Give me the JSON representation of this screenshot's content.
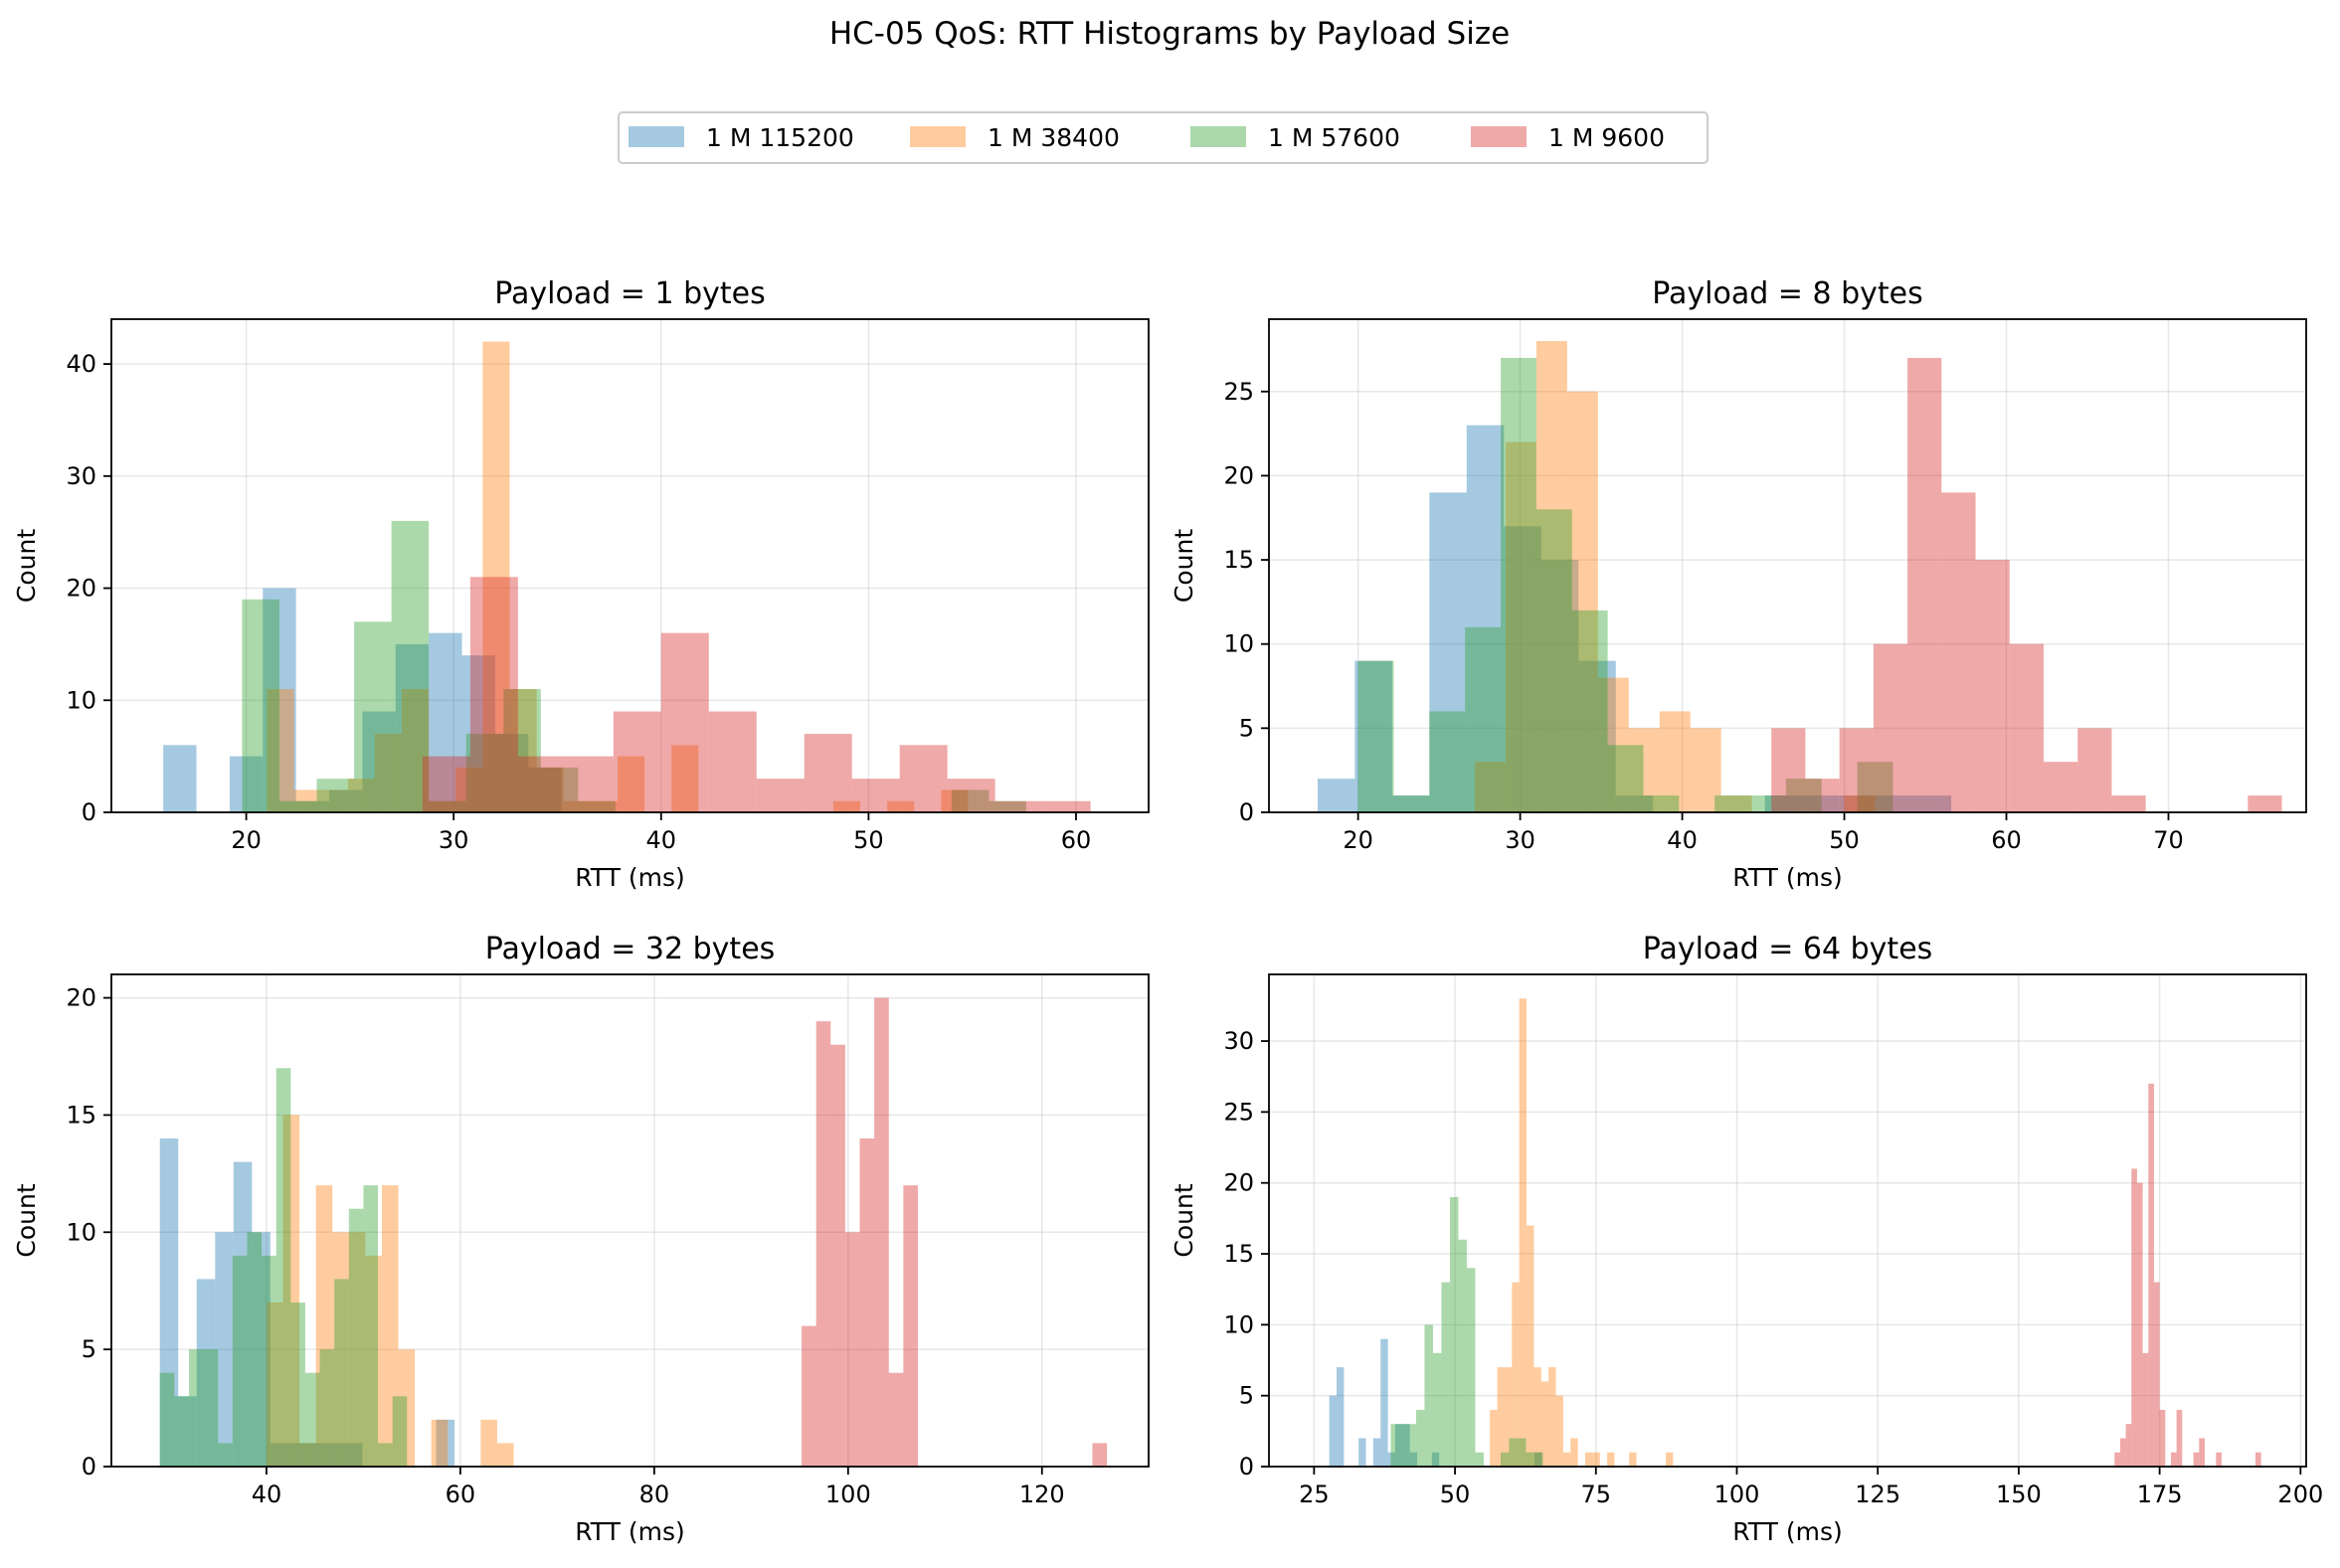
{
  "figure": {
    "title": "HC-05 QoS: RTT Histograms by Payload Size",
    "legend": {
      "placement": "top-center",
      "entries": [
        {
          "name": "1 M 115200",
          "color": "#1f77b4"
        },
        {
          "name": "1 M 38400",
          "color": "#ff7f0e"
        },
        {
          "name": "1 M 57600",
          "color": "#2ca02c"
        },
        {
          "name": "1 M 9600",
          "color": "#d62728"
        }
      ]
    },
    "bar_opacity": 0.4,
    "grid": true
  },
  "chart_data": [
    {
      "type": "histogram",
      "title": "Payload = 1 bytes",
      "xlabel": "RTT (ms)",
      "ylabel": "Count",
      "xlim": [
        13.5,
        63.5
      ],
      "ylim": [
        0,
        44
      ],
      "xticks": [
        20,
        30,
        40,
        50,
        60
      ],
      "yticks": [
        0,
        10,
        20,
        30,
        40
      ],
      "series": [
        {
          "name": "1 M 115200",
          "color": "#1f77b4",
          "edges": [
            16,
            17.6,
            19.2,
            20.8,
            22.4,
            24,
            25.6,
            27.2,
            28.8,
            30.4,
            32,
            33.6,
            35.2
          ],
          "counts": [
            6,
            0,
            5,
            20,
            1,
            2,
            9,
            15,
            16,
            14,
            7,
            4
          ]
        },
        {
          "name": "1 M 38400",
          "color": "#ff7f0e",
          "edges": [
            21,
            22.3,
            23.6,
            24.9,
            26.2,
            27.5,
            28.8,
            30.1,
            31.4,
            32.7,
            34,
            35.3,
            36.6,
            37.9,
            39.2,
            40.5,
            41.8,
            43.1,
            44.4,
            45.7,
            47,
            48.3,
            49.6,
            50.9,
            52.2,
            53.5,
            54.8
          ],
          "counts": [
            11,
            2,
            2,
            3,
            7,
            11,
            1,
            4,
            42,
            11,
            4,
            1,
            1,
            5,
            0,
            6,
            0,
            0,
            0,
            0,
            0,
            1,
            0,
            1,
            0,
            2
          ]
        },
        {
          "name": "1 M 57600",
          "color": "#2ca02c",
          "edges": [
            19.8,
            21.6,
            23.4,
            25.2,
            27,
            28.8,
            30.6,
            32.4,
            34.2,
            36,
            37.8,
            39.6,
            41.4,
            43.2,
            45,
            46.8,
            48.6,
            50.4,
            52.2,
            54,
            55.8,
            57.6
          ],
          "counts": [
            19,
            1,
            3,
            17,
            26,
            1,
            7,
            11,
            4,
            1,
            0,
            0,
            0,
            0,
            0,
            0,
            0,
            0,
            0,
            2,
            1
          ]
        },
        {
          "name": "1 M 9600",
          "color": "#d62728",
          "edges": [
            28.5,
            30.8,
            33.1,
            35.4,
            37.7,
            40,
            42.3,
            44.6,
            46.9,
            49.2,
            51.5,
            53.8,
            56.1,
            58.4,
            60.7
          ],
          "counts": [
            5,
            21,
            5,
            5,
            9,
            16,
            9,
            3,
            7,
            3,
            6,
            3,
            1,
            1
          ]
        }
      ]
    },
    {
      "type": "histogram",
      "title": "Payload = 8 bytes",
      "xlabel": "RTT (ms)",
      "ylabel": "Count",
      "xlim": [
        14.5,
        78.5
      ],
      "ylim": [
        0,
        29.3
      ],
      "xticks": [
        20,
        30,
        40,
        50,
        60,
        70
      ],
      "yticks": [
        0,
        5,
        10,
        15,
        20,
        25
      ],
      "series": [
        {
          "name": "1 M 115200",
          "color": "#1f77b4",
          "edges": [
            17.5,
            19.8,
            22.1,
            24.4,
            26.7,
            29,
            31.3,
            33.6,
            35.9,
            38.2,
            40.5,
            42.8,
            45.1,
            47.4,
            49.7,
            52,
            54.3,
            56.6
          ],
          "counts": [
            2,
            9,
            1,
            19,
            23,
            17,
            15,
            9,
            1,
            0,
            0,
            0,
            1,
            1,
            1,
            1,
            1
          ]
        },
        {
          "name": "1 M 38400",
          "color": "#ff7f0e",
          "edges": [
            27.2,
            29.1,
            31,
            32.9,
            34.8,
            36.7,
            38.6,
            40.5,
            42.4,
            44.3,
            46.2,
            48.1,
            50,
            51.9
          ],
          "counts": [
            3,
            22,
            28,
            25,
            8,
            5,
            6,
            5,
            1,
            0,
            0,
            0,
            1
          ]
        },
        {
          "name": "1 M 57600",
          "color": "#2ca02c",
          "edges": [
            20,
            22.2,
            24.4,
            26.6,
            28.8,
            31,
            33.2,
            35.4,
            37.6,
            39.8,
            42,
            44.2,
            46.4,
            48.6,
            50.8,
            53
          ],
          "counts": [
            9,
            1,
            6,
            11,
            27,
            18,
            12,
            4,
            1,
            0,
            1,
            1,
            2,
            0,
            3
          ]
        },
        {
          "name": "1 M 9600",
          "color": "#d62728",
          "edges": [
            45.5,
            47.6,
            49.7,
            51.8,
            53.9,
            56,
            58.1,
            60.2,
            62.3,
            64.4,
            66.5,
            68.6,
            70.7,
            72.8,
            74.9,
            77
          ],
          "counts": [
            5,
            2,
            5,
            10,
            27,
            19,
            15,
            10,
            3,
            5,
            1,
            0,
            0,
            0,
            1
          ]
        }
      ]
    },
    {
      "type": "histogram",
      "title": "Payload = 32 bytes",
      "xlabel": "RTT (ms)",
      "ylabel": "Count",
      "xlim": [
        24,
        131
      ],
      "ylim": [
        0,
        21
      ],
      "xticks": [
        40,
        60,
        80,
        100,
        120
      ],
      "yticks": [
        0,
        5,
        10,
        15,
        20
      ],
      "series": [
        {
          "name": "1 M 115200",
          "color": "#1f77b4",
          "edges": [
            29,
            30.9,
            32.8,
            34.7,
            36.6,
            38.5,
            40.4,
            42.3,
            44.2,
            46.1,
            48,
            49.9,
            51.8,
            53.7,
            55.6,
            57.5,
            59.4
          ],
          "counts": [
            14,
            3,
            8,
            10,
            13,
            10,
            1,
            1,
            1,
            1,
            1,
            0,
            0,
            0,
            0,
            2
          ]
        },
        {
          "name": "1 M 38400",
          "color": "#ff7f0e",
          "edges": [
            40,
            41.7,
            43.4,
            45.1,
            46.8,
            48.5,
            50.2,
            51.9,
            53.6,
            55.3,
            57,
            58.7,
            60.4,
            62.1,
            63.8,
            65.5
          ],
          "counts": [
            7,
            15,
            1,
            12,
            10,
            10,
            9,
            12,
            5,
            0,
            2,
            0,
            0,
            2,
            1
          ]
        },
        {
          "name": "1 M 57600",
          "color": "#2ca02c",
          "edges": [
            29,
            30.5,
            32,
            33.5,
            35,
            36.5,
            38,
            39.5,
            41,
            42.5,
            44,
            45.5,
            47,
            48.5,
            50,
            51.5,
            53,
            54.5,
            56
          ],
          "counts": [
            4,
            3,
            5,
            5,
            1,
            9,
            10,
            9,
            17,
            7,
            4,
            5,
            8,
            11,
            12,
            1,
            3,
            0
          ]
        },
        {
          "name": "1 M 9600",
          "color": "#d62728",
          "edges": [
            95.2,
            96.7,
            98.2,
            99.7,
            101.2,
            102.7,
            104.2,
            105.7,
            107.2,
            108.7,
            110.2,
            111.7,
            113.2,
            114.7,
            116.2,
            117.7,
            119.2,
            120.7,
            122.2,
            123.7,
            125.2,
            126.7
          ],
          "counts": [
            6,
            19,
            18,
            10,
            14,
            20,
            4,
            12,
            0,
            0,
            0,
            0,
            0,
            0,
            0,
            0,
            0,
            0,
            0,
            0,
            1
          ]
        }
      ]
    },
    {
      "type": "histogram",
      "title": "Payload = 64 bytes",
      "xlabel": "RTT (ms)",
      "ylabel": "Count",
      "xlim": [
        17,
        201
      ],
      "ylim": [
        0,
        34.7
      ],
      "xticks": [
        25,
        50,
        75,
        100,
        125,
        150,
        175,
        200
      ],
      "yticks": [
        0,
        5,
        10,
        15,
        20,
        25,
        30
      ],
      "series": [
        {
          "name": "1 M 115200",
          "color": "#1f77b4",
          "edges": [
            27.7,
            29,
            30.3,
            31.6,
            32.9,
            34.2,
            35.5,
            36.8,
            38.1,
            39.4,
            40.7,
            42,
            43.3,
            44.6,
            45.9,
            47.2,
            48.5,
            49.8,
            51.1,
            52.4,
            53.7,
            55,
            56.3,
            57.6,
            58.9,
            60.2,
            61.5,
            62.8,
            64.1,
            65.4
          ],
          "counts": [
            5,
            7,
            0,
            0,
            2,
            0,
            2,
            9,
            1,
            3,
            3,
            1,
            0,
            0,
            1,
            0,
            0,
            0,
            0,
            0,
            0,
            0,
            0,
            0,
            0,
            0,
            0,
            0,
            1
          ]
        },
        {
          "name": "1 M 38400",
          "color": "#ff7f0e",
          "edges": [
            56.2,
            57.5,
            58.8,
            60.1,
            61.4,
            62.7,
            64,
            65.3,
            66.6,
            67.9,
            69.2,
            70.5,
            71.8,
            73.1,
            74.4,
            75.7,
            77,
            78.3,
            79.6,
            80.9,
            82.2,
            83.5,
            84.8,
            86.1,
            87.4,
            88.7
          ],
          "counts": [
            4,
            7,
            7,
            13,
            33,
            17,
            7,
            6,
            7,
            5,
            1,
            2,
            0,
            1,
            1,
            0,
            1,
            0,
            0,
            1,
            0,
            0,
            0,
            0,
            1
          ]
        },
        {
          "name": "1 M 57600",
          "color": "#2ca02c",
          "edges": [
            38.6,
            40.1,
            41.6,
            43.1,
            44.6,
            46.1,
            47.6,
            49.1,
            50.6,
            52.1,
            53.6,
            55.1,
            56.6,
            58.1,
            59.6,
            61.1,
            62.6,
            64.1,
            65.6
          ],
          "counts": [
            3,
            3,
            3,
            4,
            10,
            8,
            13,
            19,
            16,
            14,
            1,
            0,
            0,
            1,
            2,
            2,
            1,
            1
          ]
        },
        {
          "name": "1 M 9600",
          "color": "#d62728",
          "edges": [
            167,
            168,
            169,
            170,
            171,
            172,
            173,
            174,
            175,
            176,
            177,
            178,
            179,
            180,
            181,
            182,
            183,
            184,
            185,
            186,
            187,
            188,
            189,
            190,
            191,
            192,
            193
          ],
          "counts": [
            1,
            2,
            3,
            21,
            20,
            8,
            27,
            13,
            4,
            0,
            1,
            4,
            0,
            0,
            1,
            2,
            0,
            0,
            1,
            0,
            0,
            0,
            0,
            0,
            0,
            1
          ]
        }
      ]
    }
  ]
}
